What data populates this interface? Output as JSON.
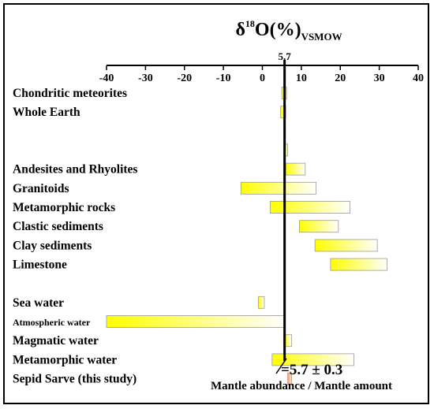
{
  "chart_data": {
    "type": "bar",
    "orientation": "horizontal-range",
    "title": {
      "delta": "δ",
      "superscript": "18",
      "main": "O(%)",
      "subscript": "VSMOW"
    },
    "xlim": [
      -40,
      40
    ],
    "x_ticks": [
      -40,
      -30,
      -20,
      -10,
      0,
      10,
      20,
      30,
      40
    ],
    "reference_line": {
      "value": 5.7,
      "label": "5.7"
    },
    "annotation": "=5.7 ± 0.3",
    "footer_label": "Mantle abundance / Mantle amount",
    "colors": {
      "bar_start": "#ffff00",
      "bar_end": "#ffffff",
      "highlight": "#f4a460",
      "line": "#000000"
    },
    "groups": [
      {
        "items": [
          {
            "label": "Chondritic meteorites",
            "min": 5.0,
            "max": 6.2
          },
          {
            "label": "Whole Earth",
            "min": 4.7,
            "max": 6.0
          }
        ]
      },
      {
        "items": [
          {
            "label": "",
            "min": 5.6,
            "max": 6.5
          },
          {
            "label": "Andesites and Rhyolites",
            "min": 6.0,
            "max": 11.0
          },
          {
            "label": "Granitoids",
            "min": -5.5,
            "max": 13.8
          },
          {
            "label": "Metamorphic rocks",
            "min": 2.0,
            "max": 22.5
          },
          {
            "label": "Clastic sediments",
            "min": 9.5,
            "max": 19.5
          },
          {
            "label": "Clay sediments",
            "min": 13.5,
            "max": 29.5
          },
          {
            "label": "Limestone",
            "min": 17.5,
            "max": 32.0
          }
        ]
      },
      {
        "items": [
          {
            "label": "Sea water",
            "min": -1.0,
            "max": 0.5
          },
          {
            "label": "Atmospheric water",
            "min": -40.0,
            "max": 5.7,
            "small": true
          },
          {
            "label": "Magmatic water",
            "min": 5.5,
            "max": 7.5
          },
          {
            "label": "Metamorphic water",
            "min": 2.5,
            "max": 23.5
          },
          {
            "label": "Sepid Sarve (this study)",
            "min": 6.5,
            "max": 7.5,
            "highlight": true
          }
        ]
      }
    ]
  }
}
